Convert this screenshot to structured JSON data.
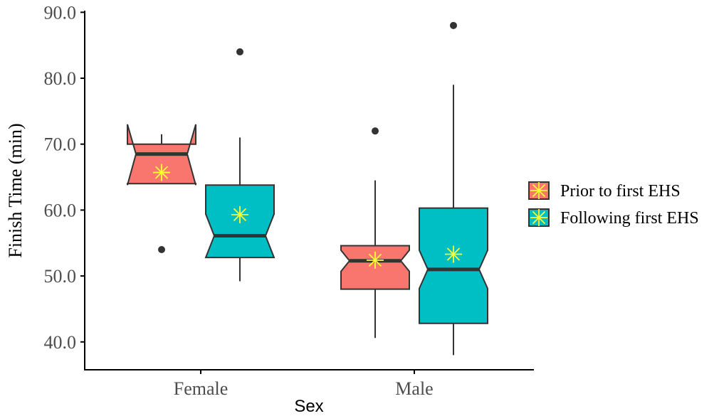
{
  "chart_data": {
    "type": "boxplot",
    "notched": true,
    "xlabel": "Sex",
    "ylabel": "Finish Time (min)",
    "ylim": [
      36.2,
      90.0
    ],
    "yticks": [
      40.0,
      50.0,
      60.0,
      70.0,
      80.0,
      90.0
    ],
    "ytick_labels": [
      "40.0",
      "50.0",
      "60.0",
      "70.0",
      "80.0",
      "90.0"
    ],
    "categories": [
      "Female",
      "Male"
    ],
    "grid": false,
    "legend_position": "right",
    "mean_marker": "asterisk",
    "mean_marker_color": "#ffff33",
    "series": [
      {
        "name": "Prior to first EHS",
        "color": "#F8766D",
        "boxes": [
          {
            "category": "Female",
            "whisker_low": 64.0,
            "q1": 64.0,
            "notch_low": 63.8,
            "median": 68.5,
            "notch_high": 73.0,
            "q3": 70.0,
            "whisker_high": 71.5,
            "mean": 65.7,
            "outliers": [
              54.0
            ]
          },
          {
            "category": "Male",
            "whisker_low": 40.6,
            "q1": 48.0,
            "notch_low": 50.7,
            "median": 52.3,
            "notch_high": 53.9,
            "q3": 54.6,
            "whisker_high": 64.5,
            "mean": 52.4,
            "outliers": [
              72.0
            ]
          }
        ]
      },
      {
        "name": "Following first EHS",
        "color": "#00BFC4",
        "boxes": [
          {
            "category": "Female",
            "whisker_low": 49.2,
            "q1": 52.8,
            "notch_low": 52.8,
            "median": 56.1,
            "notch_high": 59.4,
            "q3": 63.8,
            "whisker_high": 71.0,
            "mean": 59.3,
            "outliers": [
              84.0
            ]
          },
          {
            "category": "Male",
            "whisker_low": 38.0,
            "q1": 42.8,
            "notch_low": 48.1,
            "median": 51.0,
            "notch_high": 53.9,
            "q3": 60.3,
            "whisker_high": 79.0,
            "mean": 53.3,
            "outliers": [
              88.0
            ]
          }
        ]
      }
    ]
  }
}
